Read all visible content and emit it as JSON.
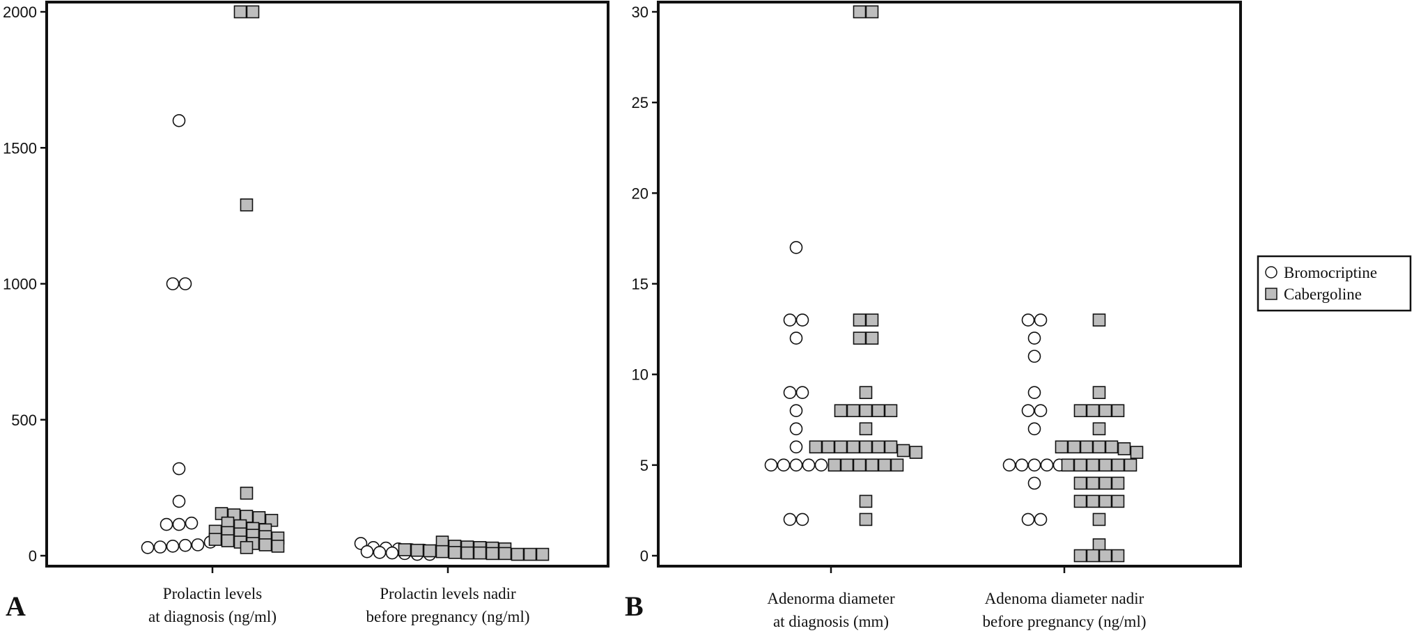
{
  "legend": {
    "position": "right",
    "entries": [
      "Bromocriptine",
      "Cabergoline"
    ]
  },
  "series_styles": {
    "Bromocriptine": {
      "marker": "circle",
      "fill": "#ffffff",
      "stroke": "#111111"
    },
    "Cabergoline": {
      "marker": "square",
      "fill": "#bdbdbd",
      "stroke": "#111111"
    }
  },
  "chart_data": [
    {
      "panel_label": "A",
      "type": "scatter",
      "title": "",
      "ylabel": "",
      "ylim": [
        0,
        2000
      ],
      "yticks": [
        0,
        500,
        1000,
        1500,
        2000
      ],
      "grid": false,
      "categories": [
        [
          "Prolactin levels",
          "at diagnosis (ng/ml)"
        ],
        [
          "Prolactin levels nadir",
          "before pregnancy (ng/ml)"
        ]
      ],
      "series": [
        {
          "name": "Bromocriptine",
          "groups": [
            [
              1600,
              1000,
              1000,
              320,
              200,
              115,
              115,
              120,
              30,
              32,
              35,
              38,
              40,
              50
            ],
            [
              45,
              30,
              28,
              25,
              22,
              20,
              18,
              15,
              12,
              10,
              8,
              5,
              5
            ]
          ]
        },
        {
          "name": "Cabergoline",
          "groups": [
            [
              2000,
              2000,
              1290,
              230,
              155,
              150,
              145,
              140,
              130,
              120,
              110,
              100,
              95,
              90,
              85,
              80,
              75,
              70,
              65,
              60,
              55,
              50,
              45,
              40,
              35,
              30
            ],
            [
              50,
              35,
              32,
              30,
              28,
              25,
              22,
              20,
              18,
              15,
              12,
              10,
              10,
              8,
              8,
              5,
              5,
              5
            ]
          ]
        }
      ]
    },
    {
      "panel_label": "B",
      "type": "scatter",
      "title": "",
      "ylabel": "",
      "ylim": [
        0,
        30
      ],
      "yticks": [
        0,
        5,
        10,
        15,
        20,
        25,
        30
      ],
      "grid": false,
      "categories": [
        [
          "Adenorma diameter",
          "at diagnosis (mm)"
        ],
        [
          "Adenoma diameter nadir",
          "before pregnancy (ng/ml)"
        ]
      ],
      "series": [
        {
          "name": "Bromocriptine",
          "groups": [
            [
              17,
              13,
              13,
              12,
              9,
              9,
              8,
              7,
              6,
              5,
              5,
              5,
              5,
              5,
              2,
              2
            ],
            [
              13,
              13,
              12,
              11,
              9,
              8,
              8,
              7,
              5,
              5,
              5,
              5,
              5,
              4,
              2,
              2
            ]
          ]
        },
        {
          "name": "Cabergoline",
          "groups": [
            [
              30,
              30,
              13,
              13,
              12,
              12,
              9,
              8,
              8,
              8,
              8,
              8,
              7,
              6,
              6,
              6,
              6,
              6,
              6,
              6,
              5.8,
              5.7,
              5,
              5,
              5,
              5,
              5,
              5,
              3,
              2
            ],
            [
              13,
              9,
              8,
              8,
              8,
              8,
              7,
              6,
              6,
              6,
              6,
              6,
              5.9,
              5.7,
              5,
              5,
              5,
              5,
              5,
              5,
              4,
              4,
              4,
              4,
              3,
              3,
              3,
              3,
              2,
              0.6,
              0,
              0,
              0,
              0
            ]
          ]
        }
      ]
    }
  ]
}
